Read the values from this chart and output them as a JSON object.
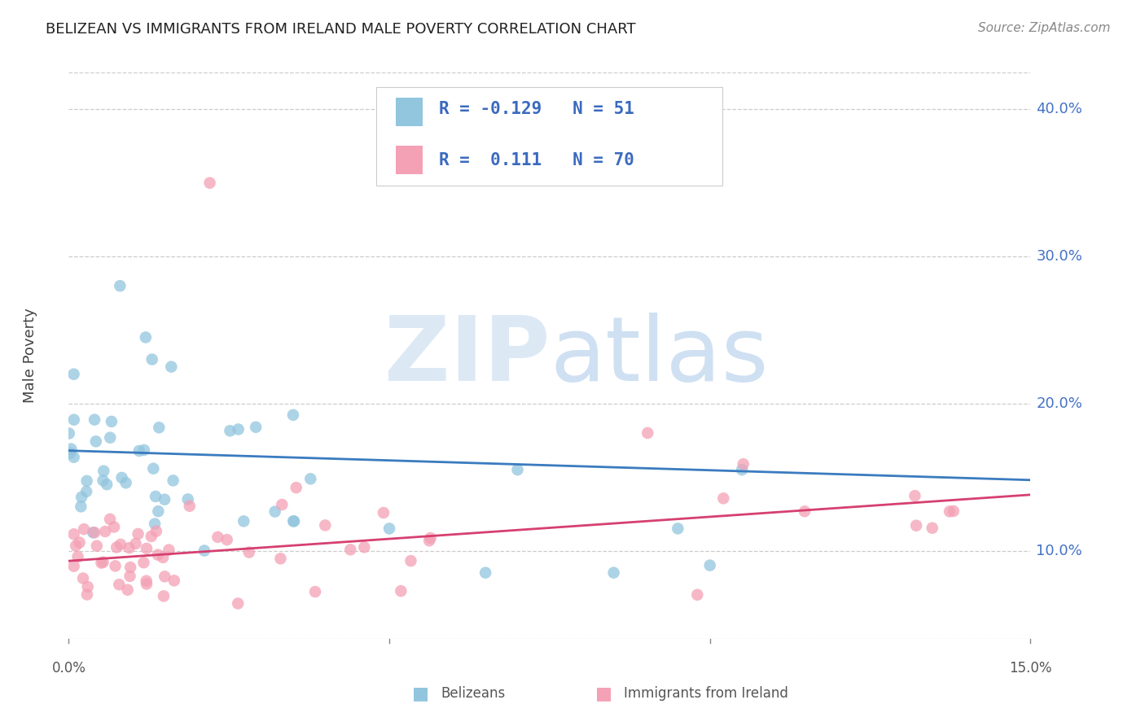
{
  "title": "BELIZEAN VS IMMIGRANTS FROM IRELAND MALE POVERTY CORRELATION CHART",
  "source": "Source: ZipAtlas.com",
  "ylabel": "Male Poverty",
  "ylabel_ticks_labels": [
    "10.0%",
    "20.0%",
    "30.0%",
    "40.0%"
  ],
  "ylabel_values": [
    0.1,
    0.2,
    0.3,
    0.4
  ],
  "xlim": [
    0.0,
    0.15
  ],
  "ylim": [
    0.04,
    0.425
  ],
  "blue_color": "#92c5de",
  "blue_line_color": "#3a7bbf",
  "pink_color": "#f4a0b5",
  "pink_line_color": "#d64070",
  "legend_blue_r": "-0.129",
  "legend_blue_n": "51",
  "legend_pink_r": " 0.111",
  "legend_pink_n": "70",
  "blue_trend_x": [
    0.0,
    0.15
  ],
  "blue_trend_y": [
    0.168,
    0.148
  ],
  "pink_trend_x": [
    0.0,
    0.15
  ],
  "pink_trend_y": [
    0.093,
    0.138
  ]
}
